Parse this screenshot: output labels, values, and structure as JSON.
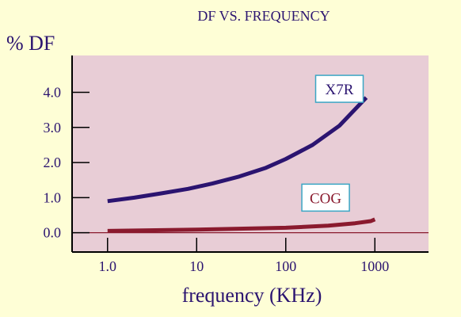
{
  "colors": {
    "background": "#fefed6",
    "plot_area": "#e8cdd6",
    "text": "#2b1470",
    "axis": "#000000",
    "zero_line": "#8a1a2e",
    "x7r": "#2b1470",
    "cog": "#8a1a2e",
    "legend_border": "#3aa6c4",
    "legend_bg": "#ffffff"
  },
  "chart_data": {
    "type": "line",
    "title": "DF VS. FREQUENCY",
    "xlabel": "frequency (KHz)",
    "ylabel": "% DF",
    "x_scale": "log",
    "xlim": [
      0.4,
      4000
    ],
    "ylim": [
      -0.55,
      5.05
    ],
    "x_ticks": [
      1,
      10,
      100,
      1000
    ],
    "x_tick_labels": [
      "1.0",
      "10",
      "100",
      "1000"
    ],
    "y_ticks": [
      0,
      1,
      2,
      3,
      4
    ],
    "y_tick_labels": [
      "0.0",
      "1.0",
      "2.0",
      "3.0",
      "4.0"
    ],
    "grid": false,
    "series": [
      {
        "name": "X7R",
        "x": [
          1,
          2,
          4,
          8,
          15,
          30,
          60,
          100,
          200,
          400,
          800
        ],
        "y": [
          0.9,
          1.0,
          1.12,
          1.25,
          1.4,
          1.6,
          1.85,
          2.1,
          2.5,
          3.05,
          3.85
        ],
        "label_position": [
          400,
          4.1
        ]
      },
      {
        "name": "COG",
        "x": [
          1,
          10,
          100,
          300,
          600,
          900,
          1000
        ],
        "y": [
          0.05,
          0.09,
          0.14,
          0.2,
          0.27,
          0.33,
          0.38
        ],
        "label_position": [
          280,
          1.0
        ]
      }
    ]
  }
}
